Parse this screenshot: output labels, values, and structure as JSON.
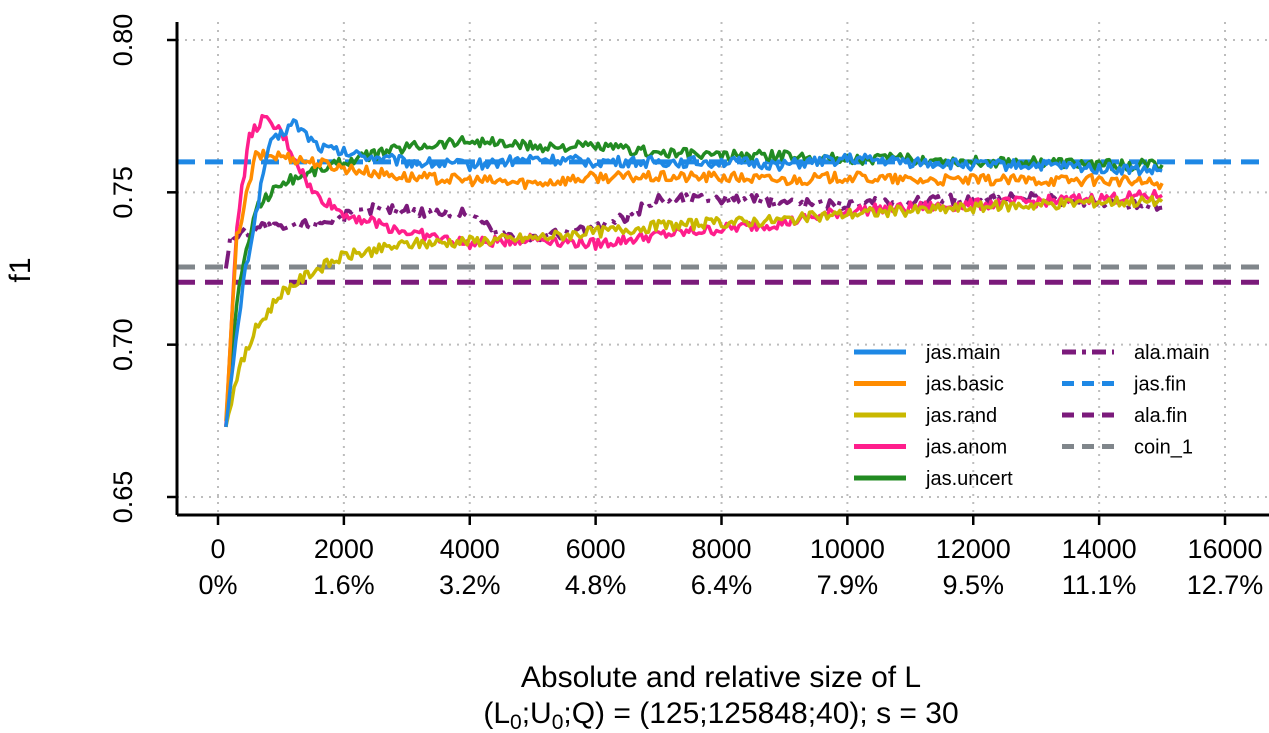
{
  "chart_data": {
    "type": "line",
    "ylabel": "f1",
    "xlabel_line1": "Absolute and relative size of L",
    "xlabel_line2": {
      "open": "(L",
      "sub_1": "0",
      "sep_1": ";U",
      "sub_2": "0",
      "rest": ";Q) = (125;125848;40); s = 30"
    },
    "xlim": [
      0,
      16000
    ],
    "ylim": [
      0.65,
      0.8
    ],
    "y_ticks": [
      0.65,
      0.7,
      0.75,
      0.8
    ],
    "y_tick_labels": [
      "0.65",
      "0.70",
      "0.75",
      "0.80"
    ],
    "x_ticks": [
      0,
      2000,
      4000,
      6000,
      8000,
      10000,
      12000,
      14000,
      16000
    ],
    "x_tick_labels": [
      "0",
      "2000",
      "4000",
      "6000",
      "8000",
      "10000",
      "12000",
      "14000",
      "16000"
    ],
    "x_tick_labels_relative": [
      "0%",
      "1.6%",
      "3.2%",
      "4.8%",
      "6.4%",
      "7.9%",
      "9.5%",
      "11.1%",
      "12.7%"
    ],
    "grid": true,
    "legend_position": "bottom-right",
    "series": [
      {
        "name": "jas.main",
        "color": "#1E88E5",
        "style": "solid",
        "x": [
          125,
          400,
          800,
          1200,
          1600,
          2000,
          3000,
          4000,
          5000,
          6000,
          7000,
          8000,
          9000,
          10000,
          11000,
          12000,
          13000,
          14000,
          15000
        ],
        "y": [
          0.673,
          0.72,
          0.765,
          0.773,
          0.765,
          0.763,
          0.76,
          0.759,
          0.761,
          0.76,
          0.76,
          0.76,
          0.759,
          0.761,
          0.76,
          0.759,
          0.759,
          0.758,
          0.757
        ]
      },
      {
        "name": "jas.basic",
        "color": "#FF8C00",
        "style": "solid",
        "x": [
          125,
          300,
          600,
          1000,
          1500,
          2000,
          3000,
          4000,
          5000,
          6000,
          7000,
          8000,
          9000,
          10000,
          11000,
          12000,
          13000,
          14000,
          15000
        ],
        "y": [
          0.675,
          0.735,
          0.762,
          0.762,
          0.76,
          0.758,
          0.755,
          0.754,
          0.753,
          0.755,
          0.755,
          0.755,
          0.754,
          0.755,
          0.754,
          0.754,
          0.754,
          0.754,
          0.753
        ]
      },
      {
        "name": "jas.rand",
        "color": "#C9B800",
        "style": "solid",
        "x": [
          125,
          300,
          600,
          1000,
          1500,
          2000,
          3000,
          4000,
          5000,
          6000,
          7000,
          8000,
          9000,
          10000,
          11000,
          12000,
          13000,
          14000,
          15000
        ],
        "y": [
          0.673,
          0.69,
          0.705,
          0.717,
          0.724,
          0.729,
          0.733,
          0.734,
          0.735,
          0.737,
          0.739,
          0.74,
          0.741,
          0.743,
          0.744,
          0.745,
          0.746,
          0.747,
          0.747
        ]
      },
      {
        "name": "jas.anom",
        "color": "#FF1E8C",
        "style": "solid",
        "x": [
          125,
          300,
          500,
          700,
          1000,
          1500,
          2000,
          3000,
          4000,
          5000,
          6000,
          7000,
          8000,
          9000,
          10000,
          11000,
          12000,
          13000,
          14000,
          15000
        ],
        "y": [
          0.673,
          0.74,
          0.768,
          0.774,
          0.77,
          0.75,
          0.743,
          0.737,
          0.733,
          0.735,
          0.733,
          0.736,
          0.738,
          0.74,
          0.744,
          0.745,
          0.746,
          0.747,
          0.748,
          0.749
        ]
      },
      {
        "name": "jas.uncert",
        "color": "#228B22",
        "style": "solid",
        "x": [
          125,
          300,
          600,
          1000,
          1500,
          2000,
          3000,
          4000,
          5000,
          6000,
          7000,
          8000,
          9000,
          10000,
          11000,
          12000,
          13000,
          14000,
          15000
        ],
        "y": [
          0.673,
          0.715,
          0.745,
          0.753,
          0.757,
          0.76,
          0.765,
          0.767,
          0.765,
          0.765,
          0.763,
          0.762,
          0.762,
          0.761,
          0.761,
          0.76,
          0.76,
          0.759,
          0.759
        ]
      },
      {
        "name": "ala.main",
        "color": "#7B1A7B",
        "style": "dashdot",
        "x": [
          125,
          200,
          400,
          700,
          1000,
          1500,
          2000,
          2500,
          3000,
          4000,
          4500,
          5000,
          6000,
          6500,
          7000,
          8000,
          9000,
          10000,
          11000,
          12000,
          13000,
          14000,
          15000
        ],
        "y": [
          0.725,
          0.735,
          0.737,
          0.739,
          0.738,
          0.74,
          0.742,
          0.745,
          0.744,
          0.743,
          0.736,
          0.735,
          0.738,
          0.742,
          0.748,
          0.748,
          0.747,
          0.746,
          0.747,
          0.748,
          0.748,
          0.747,
          0.745
        ]
      },
      {
        "name": "jas.fin",
        "color": "#1E88E5",
        "style": "dashed",
        "hline": 0.76
      },
      {
        "name": "ala.fin",
        "color": "#7B1A7B",
        "style": "dashed",
        "hline": 0.7205
      },
      {
        "name": "coin_1",
        "color": "#80868B",
        "style": "dashed",
        "hline": 0.7255
      }
    ]
  }
}
